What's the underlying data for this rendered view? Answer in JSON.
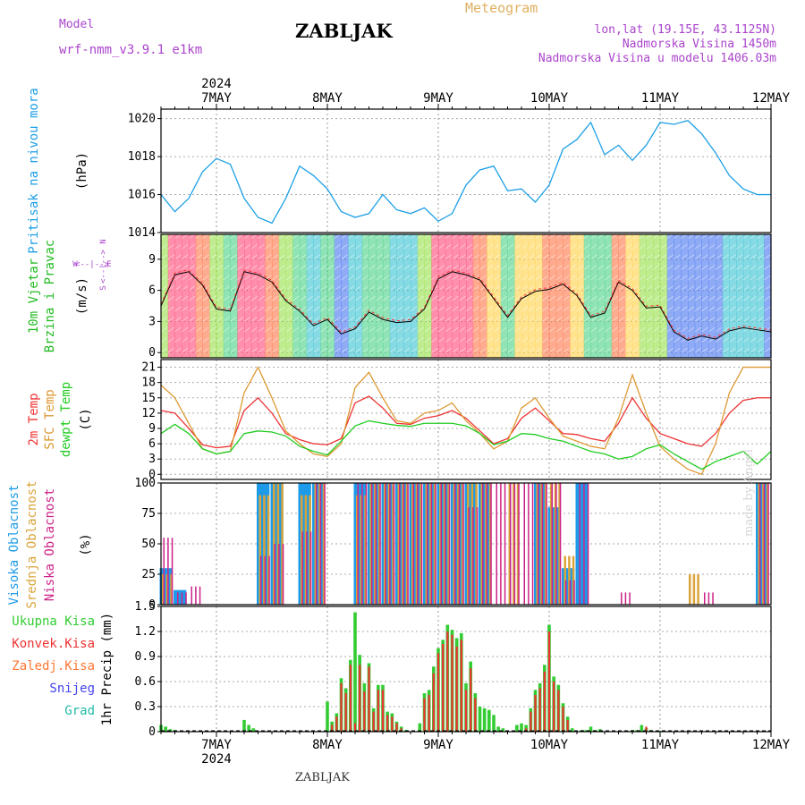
{
  "header": {
    "model_label": "Model",
    "model_name": "wrf-nmm_v3.9.1 e1km",
    "title": "ZABLJAK",
    "meteogram_label": "Meteogram",
    "coords": "lon,lat (19.15E, 43.1125N)",
    "elevation": "Nadmorska Visina 1450m",
    "model_elevation": "Nadmorska Visina u modelu 1406.03m"
  },
  "footer": {
    "station": "ZABLJAK",
    "credit": "made by Angel"
  },
  "colors": {
    "pressure": "#1ea0e6",
    "wind_title": "#22bb22",
    "temp_2m": "#ee3333",
    "temp_sfc": "#dd9933",
    "temp_dew": "#22cc22",
    "cloud_high": "#1e9be8",
    "cloud_mid": "#d9a43a",
    "cloud_low": "#cc2288",
    "precip_total": "#33cc33",
    "precip_conv": "#ee3333",
    "precip_frozen": "#ff7733",
    "precip_snow": "#4444ee",
    "precip_hail": "#22bbaa",
    "header_purple": "#aa44cc",
    "header_orange": "#e0b060"
  },
  "time_axis": {
    "year": "2024",
    "days": [
      "7MAY",
      "8MAY",
      "9MAY",
      "10MAY",
      "11MAY",
      "12MAY"
    ],
    "start_hour": 12,
    "end_hour": 144
  },
  "panel_labels": {
    "pressure": [
      "Pritisak na nivou mora"
    ],
    "pressure_unit": "(hPa)",
    "wind": [
      "10m Vjetar",
      "Brzina i Pravac"
    ],
    "wind_unit": "(m/s)",
    "wind_compass": [
      "W",
      "<--|-->",
      "E",
      "N",
      "<--|-->",
      "S"
    ],
    "temp": [
      "2m Temp",
      "SFC Temp",
      "dewpt Temp"
    ],
    "temp_unit": "(C)",
    "cloud": [
      "Visoka Oblacnost",
      "Srednja Oblacnost",
      "Niska Oblacnost"
    ],
    "cloud_unit": "(%)",
    "precip_legend": [
      "Ukupna Kisa",
      "Konvek.Kisa",
      "Zaledj.Kisa",
      "Snijeg",
      "Grad"
    ],
    "precip_unit": "1hr Precip (mm)"
  },
  "chart_data": [
    {
      "type": "line",
      "panel": "pressure",
      "yticks": [
        "1014",
        "1016",
        "1018",
        "1020"
      ],
      "ylim": [
        1014,
        1020.5
      ],
      "x": [
        12,
        15,
        18,
        21,
        24,
        27,
        30,
        33,
        36,
        39,
        42,
        45,
        48,
        51,
        54,
        57,
        60,
        63,
        66,
        69,
        72,
        75,
        78,
        81,
        84,
        87,
        90,
        93,
        96,
        99,
        102,
        105,
        108,
        111,
        114,
        117,
        120,
        123,
        126,
        129,
        132,
        135,
        138,
        141,
        144
      ],
      "series": [
        {
          "values": [
            1016.0,
            1015.1,
            1015.8,
            1017.2,
            1017.9,
            1017.6,
            1015.8,
            1014.8,
            1014.5,
            1015.8,
            1017.5,
            1017.0,
            1016.3,
            1015.1,
            1014.8,
            1015.0,
            1016.0,
            1015.2,
            1015.0,
            1015.3,
            1014.6,
            1015.0,
            1016.5,
            1017.3,
            1017.5,
            1016.2,
            1016.3,
            1015.6,
            1016.5,
            1018.4,
            1018.9,
            1019.8,
            1018.1,
            1018.6,
            1017.8,
            1018.6,
            1019.8,
            1019.7,
            1019.9,
            1019.2,
            1018.2,
            1017.0,
            1016.3,
            1016.0,
            1016.0
          ]
        }
      ]
    },
    {
      "type": "line",
      "panel": "wind",
      "yticks": [
        "0",
        "3",
        "6",
        "9"
      ],
      "ylim": [
        -0.5,
        11.4
      ],
      "x": [
        12,
        15,
        18,
        21,
        24,
        27,
        30,
        33,
        36,
        39,
        42,
        45,
        48,
        51,
        54,
        57,
        60,
        63,
        66,
        69,
        72,
        75,
        78,
        81,
        84,
        87,
        90,
        93,
        96,
        99,
        102,
        105,
        108,
        111,
        114,
        117,
        120,
        123,
        126,
        129,
        132,
        135,
        138,
        141,
        144
      ],
      "series": [
        {
          "name": "speed",
          "values": [
            4.5,
            7.5,
            7.8,
            6.5,
            4.2,
            4.0,
            7.8,
            7.5,
            6.8,
            5.0,
            4.0,
            2.6,
            3.2,
            1.8,
            2.3,
            3.9,
            3.2,
            2.9,
            3.0,
            4.2,
            7.1,
            7.8,
            7.5,
            7.0,
            5.2,
            3.4,
            5.2,
            5.9,
            6.1,
            6.6,
            5.5,
            3.4,
            3.8,
            6.8,
            6.0,
            4.3,
            4.4,
            2.0,
            1.2,
            1.6,
            1.3,
            2.1,
            2.4,
            2.2,
            2.0
          ]
        }
      ]
    },
    {
      "type": "line",
      "panel": "temperature",
      "yticks": [
        "0",
        "3",
        "6",
        "9",
        "12",
        "15",
        "18",
        "21"
      ],
      "ylim": [
        -1,
        22.5
      ],
      "x": [
        12,
        15,
        18,
        21,
        24,
        27,
        30,
        33,
        36,
        39,
        42,
        45,
        48,
        51,
        54,
        57,
        60,
        63,
        66,
        69,
        72,
        75,
        78,
        81,
        84,
        87,
        90,
        93,
        96,
        99,
        102,
        105,
        108,
        111,
        114,
        117,
        120,
        123,
        126,
        129,
        132,
        135,
        138,
        141,
        144
      ],
      "series": [
        {
          "name": "2m Temp",
          "values": [
            12.5,
            12.0,
            9.0,
            5.8,
            5.2,
            5.5,
            12.5,
            15.0,
            12.0,
            8.0,
            6.8,
            6.0,
            5.8,
            7.0,
            14.0,
            15.3,
            13.0,
            10.0,
            9.8,
            11.0,
            11.5,
            12.5,
            11.0,
            8.5,
            6.0,
            7.0,
            11.0,
            13.0,
            10.5,
            8.0,
            7.8,
            7.0,
            6.5,
            10.0,
            15.0,
            11.0,
            8.0,
            7.0,
            6.0,
            5.5,
            8.0,
            12.0,
            14.5,
            15.0,
            15.0
          ]
        },
        {
          "name": "SFC Temp",
          "values": [
            17.5,
            15.0,
            10.0,
            5.0,
            4.0,
            4.5,
            16.0,
            21.0,
            15.0,
            8.5,
            6.0,
            4.0,
            3.5,
            6.0,
            17.0,
            20.0,
            15.0,
            10.5,
            10.0,
            12.0,
            12.5,
            14.0,
            10.5,
            8.0,
            5.0,
            6.5,
            13.0,
            15.0,
            11.0,
            7.5,
            6.5,
            5.5,
            5.0,
            11.0,
            19.5,
            12.0,
            5.5,
            3.0,
            1.0,
            0.0,
            6.0,
            16.0,
            21.0,
            21.0,
            21.0
          ]
        },
        {
          "name": "dewpt Temp",
          "values": [
            8.0,
            9.8,
            8.0,
            5.0,
            4.0,
            4.5,
            8.0,
            8.5,
            8.3,
            7.5,
            5.5,
            4.5,
            3.8,
            6.5,
            9.5,
            10.5,
            10.0,
            9.6,
            9.4,
            10.0,
            10.0,
            10.0,
            9.5,
            8.0,
            5.8,
            6.5,
            8.0,
            7.8,
            7.0,
            6.5,
            5.5,
            4.5,
            4.0,
            3.0,
            3.5,
            5.0,
            5.8,
            4.0,
            2.5,
            1.0,
            2.5,
            3.5,
            4.5,
            2.0,
            4.5
          ]
        }
      ]
    },
    {
      "type": "bar",
      "panel": "cloud",
      "yticks": [
        "0",
        "25",
        "50",
        "75",
        "100"
      ],
      "ylim": [
        0,
        100
      ],
      "x": [
        12,
        15,
        18,
        21,
        24,
        27,
        30,
        33,
        36,
        39,
        42,
        45,
        48,
        51,
        54,
        57,
        60,
        63,
        66,
        69,
        72,
        75,
        78,
        81,
        84,
        87,
        90,
        93,
        96,
        99,
        102,
        105,
        108,
        111,
        114,
        117,
        120,
        123,
        126,
        129,
        132,
        135,
        138,
        141,
        144
      ],
      "series": [
        {
          "name": "Visoka Oblacnost",
          "values": [
            30,
            12,
            0,
            0,
            0,
            0,
            0,
            100,
            100,
            0,
            100,
            100,
            0,
            0,
            100,
            100,
            100,
            100,
            100,
            100,
            100,
            100,
            100,
            100,
            0,
            0,
            0,
            100,
            80,
            30,
            100,
            0,
            0,
            0,
            0,
            0,
            0,
            0,
            0,
            0,
            0,
            0,
            0,
            100,
            100
          ]
        },
        {
          "name": "Srednja Oblacnost",
          "values": [
            25,
            0,
            0,
            0,
            0,
            0,
            0,
            90,
            100,
            0,
            90,
            100,
            0,
            0,
            90,
            100,
            100,
            100,
            100,
            100,
            100,
            100,
            100,
            100,
            0,
            100,
            0,
            100,
            100,
            40,
            0,
            0,
            0,
            0,
            0,
            0,
            0,
            0,
            25,
            0,
            0,
            0,
            0,
            100,
            100
          ]
        },
        {
          "name": "Niska Oblacnost",
          "values": [
            55,
            10,
            15,
            0,
            0,
            0,
            0,
            40,
            50,
            0,
            60,
            100,
            0,
            0,
            100,
            100,
            100,
            100,
            100,
            100,
            100,
            100,
            80,
            100,
            100,
            100,
            100,
            100,
            100,
            20,
            100,
            0,
            0,
            10,
            0,
            0,
            0,
            0,
            0,
            10,
            0,
            0,
            0,
            100,
            100
          ]
        }
      ]
    },
    {
      "type": "bar",
      "panel": "precipitation",
      "yticks": [
        "0",
        "0.3",
        "0.6",
        "0.9",
        "1.2",
        "1.5"
      ],
      "ylim": [
        0,
        1.5
      ],
      "x": [
        12,
        13,
        14,
        15,
        18,
        21,
        24,
        27,
        30,
        31,
        32,
        33,
        36,
        39,
        42,
        45,
        47,
        48,
        49,
        50,
        51,
        52,
        53,
        54,
        55,
        56,
        57,
        58,
        59,
        60,
        61,
        62,
        63,
        64,
        65,
        68,
        69,
        70,
        71,
        72,
        73,
        74,
        75,
        76,
        77,
        78,
        79,
        80,
        81,
        82,
        83,
        84,
        85,
        86,
        87,
        88,
        89,
        90,
        91,
        92,
        93,
        94,
        95,
        96,
        97,
        98,
        99,
        100,
        101,
        102,
        103,
        104,
        105,
        106,
        107,
        108,
        109,
        110,
        111,
        112,
        113,
        114,
        115,
        116,
        117,
        118,
        120,
        121,
        122,
        123,
        124,
        125,
        126,
        127,
        128,
        129,
        130,
        131,
        132,
        133,
        134,
        135,
        136,
        137,
        138,
        139,
        140,
        141,
        142,
        143,
        144
      ],
      "series": [
        {
          "name": "Ukupna Kisa",
          "values": [
            0.08,
            0.06,
            0.03,
            0.02,
            0,
            0,
            0,
            0,
            0.14,
            0.08,
            0.04,
            0,
            0,
            0,
            0,
            0,
            0,
            0.36,
            0.12,
            0.22,
            0.64,
            0.52,
            0.86,
            1.43,
            0.92,
            0.58,
            0.82,
            0.28,
            0.56,
            0.56,
            0.24,
            0.22,
            0.12,
            0.06,
            0.02,
            0.1,
            0.46,
            0.5,
            0.78,
            1.0,
            1.1,
            1.28,
            1.22,
            1.12,
            1.18,
            0.58,
            0.84,
            0.46,
            0.3,
            0.28,
            0.26,
            0.2,
            0.06,
            0.04,
            0,
            0,
            0.08,
            0.1,
            0.08,
            0.28,
            0.5,
            0.58,
            0.8,
            1.28,
            0.66,
            0.56,
            0.34,
            0.18,
            0.04,
            0,
            0.02,
            0.02,
            0.06,
            0.02,
            0.03,
            0,
            0,
            0,
            0,
            0,
            0.01,
            0.02,
            0.02,
            0.08,
            0.04,
            0.02,
            0.01,
            0,
            0,
            0,
            0,
            0,
            0,
            0,
            0,
            0,
            0,
            0,
            0,
            0,
            0,
            0,
            0,
            0,
            0,
            0,
            0,
            0,
            0,
            0,
            0
          ]
        },
        {
          "name": "Konvek.Kisa",
          "values": [
            0,
            0,
            0,
            0,
            0,
            0,
            0,
            0,
            0,
            0,
            0,
            0,
            0,
            0,
            0,
            0,
            0,
            0,
            0.08,
            0.18,
            0.58,
            0.46,
            0.8,
            0.1,
            0.8,
            0.48,
            0.78,
            0.24,
            0.5,
            0.5,
            0.2,
            0.18,
            0.1,
            0.04,
            0,
            0,
            0.4,
            0.44,
            0.7,
            0.94,
            1.05,
            1.2,
            1.16,
            1.02,
            1.1,
            0.5,
            0.76,
            0.4,
            0,
            0,
            0,
            0,
            0,
            0,
            0,
            0,
            0,
            0,
            0.04,
            0.24,
            0.44,
            0.52,
            0.72,
            1.2,
            0.6,
            0.5,
            0.3,
            0.14,
            0,
            0,
            0,
            0,
            0,
            0,
            0,
            0,
            0,
            0,
            0,
            0,
            0,
            0,
            0,
            0,
            0.06,
            0,
            0,
            0,
            0,
            0,
            0,
            0,
            0,
            0,
            0,
            0,
            0,
            0,
            0,
            0,
            0,
            0,
            0,
            0,
            0,
            0,
            0,
            0,
            0,
            0,
            0
          ]
        }
      ]
    }
  ]
}
